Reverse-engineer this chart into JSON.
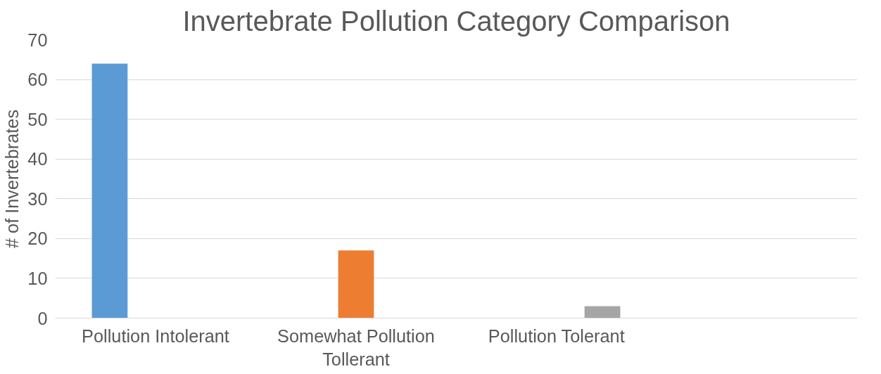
{
  "chart_data": {
    "type": "bar",
    "title": "Invertebrate Pollution Category Comparison",
    "ylabel": "# of Invertebrates",
    "categories": [
      "Pollution Intolerant",
      "Somewhat Pollution Tollerant",
      "Pollution Tolerant",
      null
    ],
    "series": [
      {
        "color": "#5b9bd5",
        "values": [
          64,
          null,
          null,
          null
        ]
      },
      {
        "color": "#ed7d31",
        "values": [
          null,
          17,
          null,
          null
        ]
      },
      {
        "color": "#a5a5a5",
        "values": [
          null,
          null,
          3,
          null
        ]
      }
    ],
    "ylim": [
      0,
      70
    ],
    "yticks": [
      0,
      10,
      20,
      30,
      40,
      50,
      60,
      70
    ],
    "grid": "y"
  }
}
